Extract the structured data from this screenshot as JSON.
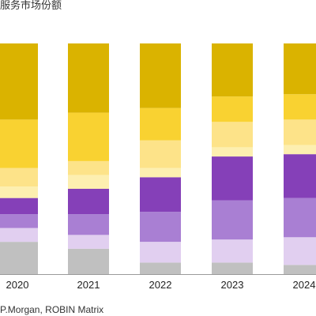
{
  "title": "服务市场份额",
  "source": "P.Morgan, ROBIN Matrix",
  "chart_data": {
    "type": "bar",
    "stacked": true,
    "categories": [
      "2020",
      "2021",
      "2022",
      "2023",
      "2024"
    ],
    "ylim": [
      0,
      100
    ],
    "grid": false,
    "legend": "none",
    "series": [
      {
        "color": "#c0c0c0",
        "values": [
          14,
          11,
          5,
          5,
          4
        ]
      },
      {
        "color": "#e1cff0",
        "values": [
          6,
          6,
          9,
          10,
          12
        ]
      },
      {
        "color": "#a97fd3",
        "values": [
          6,
          9,
          13,
          17,
          17
        ]
      },
      {
        "color": "#8540b8",
        "values": [
          7,
          11,
          15,
          19,
          19
        ]
      },
      {
        "color": "#fdefb0",
        "values": [
          5,
          6,
          4,
          4,
          4
        ]
      },
      {
        "color": "#fde389",
        "values": [
          8,
          6,
          12,
          11,
          11
        ]
      },
      {
        "color": "#f9d231",
        "values": [
          21,
          21,
          14,
          11,
          11
        ]
      },
      {
        "color": "#dab300",
        "values": [
          33,
          30,
          28,
          23,
          22
        ]
      }
    ]
  }
}
